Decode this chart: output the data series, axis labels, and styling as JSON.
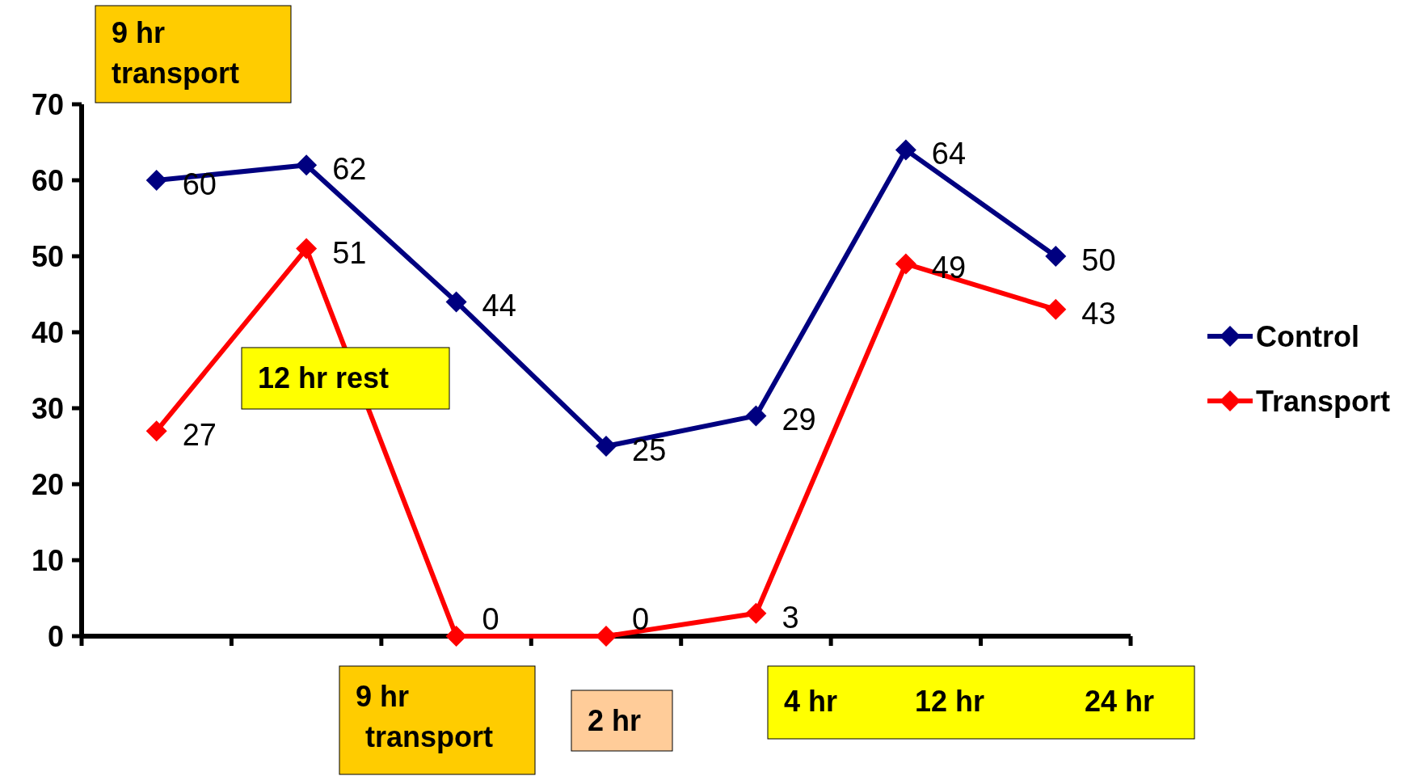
{
  "chart_data": {
    "type": "line",
    "categories": [
      null,
      null,
      null,
      null,
      null,
      null,
      null
    ],
    "series": [
      {
        "name": "Control",
        "color": "#000080",
        "values": [
          60,
          62,
          44,
          25,
          29,
          64,
          50
        ]
      },
      {
        "name": "Transport",
        "color": "#ff0000",
        "values": [
          27,
          51,
          0,
          0,
          3,
          49,
          43
        ]
      }
    ],
    "ylim": [
      0,
      70
    ],
    "yticks": [
      0,
      10,
      20,
      30,
      40,
      50,
      60,
      70
    ],
    "grid": false,
    "legend": "right",
    "marker": "diamond",
    "line_style": "solid",
    "data_labels": true,
    "annotations": [
      "9 hr transport",
      "12 hr rest",
      "9 hr transport",
      "2 hr",
      "4 hr",
      "12 hr",
      "24 hr"
    ]
  }
}
